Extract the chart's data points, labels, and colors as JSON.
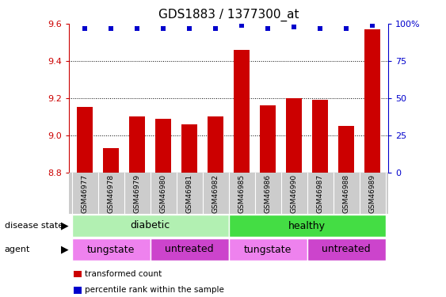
{
  "title": "GDS1883 / 1377300_at",
  "samples": [
    "GSM46977",
    "GSM46978",
    "GSM46979",
    "GSM46980",
    "GSM46981",
    "GSM46982",
    "GSM46985",
    "GSM46986",
    "GSM46990",
    "GSM46987",
    "GSM46988",
    "GSM46989"
  ],
  "bar_values": [
    9.15,
    8.93,
    9.1,
    9.09,
    9.06,
    9.1,
    9.46,
    9.16,
    9.2,
    9.19,
    9.05,
    9.57
  ],
  "percentile_values": [
    97,
    97,
    97,
    97,
    97,
    97,
    99,
    97,
    98,
    97,
    97,
    99
  ],
  "bar_color": "#cc0000",
  "percentile_color": "#0000cc",
  "ylim_left": [
    8.8,
    9.6
  ],
  "yticks_left": [
    8.8,
    9.0,
    9.2,
    9.4,
    9.6
  ],
  "ylim_right": [
    0,
    100
  ],
  "yticks_right": [
    0,
    25,
    50,
    75,
    100
  ],
  "ytick_labels_right": [
    "0",
    "25",
    "50",
    "75",
    "100%"
  ],
  "disease_state_groups": [
    {
      "label": "diabetic",
      "color": "#b2f0b2",
      "start": 0,
      "end": 6
    },
    {
      "label": "healthy",
      "color": "#44dd44",
      "start": 6,
      "end": 12
    }
  ],
  "agent_groups": [
    {
      "label": "tungstate",
      "color": "#ee82ee",
      "start": 0,
      "end": 3
    },
    {
      "label": "untreated",
      "color": "#cc44cc",
      "start": 3,
      "end": 6
    },
    {
      "label": "tungstate",
      "color": "#ee82ee",
      "start": 6,
      "end": 9
    },
    {
      "label": "untreated",
      "color": "#cc44cc",
      "start": 9,
      "end": 12
    }
  ],
  "disease_label": "disease state",
  "agent_label": "agent",
  "legend_items": [
    {
      "label": "transformed count",
      "color": "#cc0000"
    },
    {
      "label": "percentile rank within the sample",
      "color": "#0000cc"
    }
  ],
  "background_color": "#ffffff",
  "left_tick_color": "#cc0000",
  "right_tick_color": "#0000cc",
  "sample_bg_color": "#cccccc",
  "dotted_lines": [
    9.0,
    9.2,
    9.4
  ]
}
